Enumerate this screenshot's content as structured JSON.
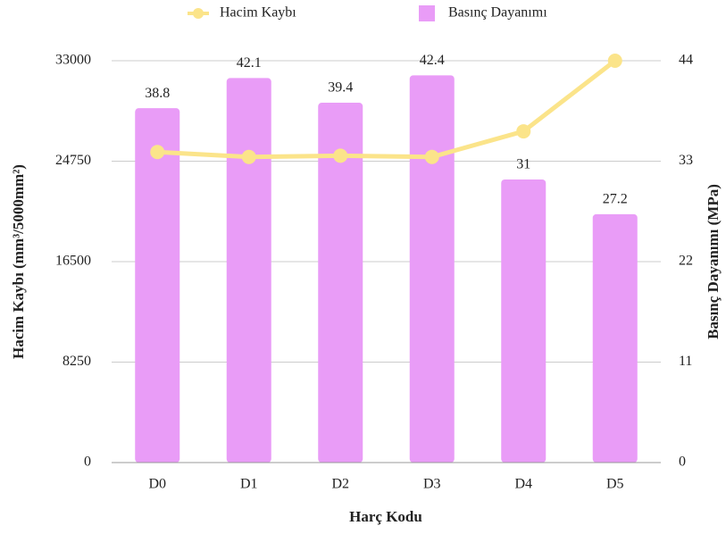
{
  "chart_data": {
    "type": "bar",
    "categories": [
      "D0",
      "D1",
      "D2",
      "D3",
      "D4",
      "D5"
    ],
    "series": [
      {
        "name": "Hacim Kaybı",
        "type": "line",
        "color": "#fbe48a",
        "values": [
          25500,
          25100,
          25200,
          25100,
          27200,
          33000
        ]
      },
      {
        "name": "Basınç Dayanımı",
        "type": "bar",
        "axis": "y2",
        "color": "#e99cf7",
        "values": [
          38.8,
          42.1,
          39.4,
          42.4,
          31,
          27.2
        ]
      }
    ],
    "x_label": "Harç Kodu",
    "y_label": "Hacim Kaybı (mm³/5000mm²)",
    "y2_label": "Basınç Dayanımı (MPa)",
    "ylim": [
      0,
      33000
    ],
    "yticks": [
      0,
      8250,
      16500,
      24750,
      33000
    ],
    "y2lim": [
      0,
      44
    ],
    "y2ticks": [
      0,
      11,
      22,
      33,
      44
    ],
    "grid": true,
    "legend": "top"
  }
}
